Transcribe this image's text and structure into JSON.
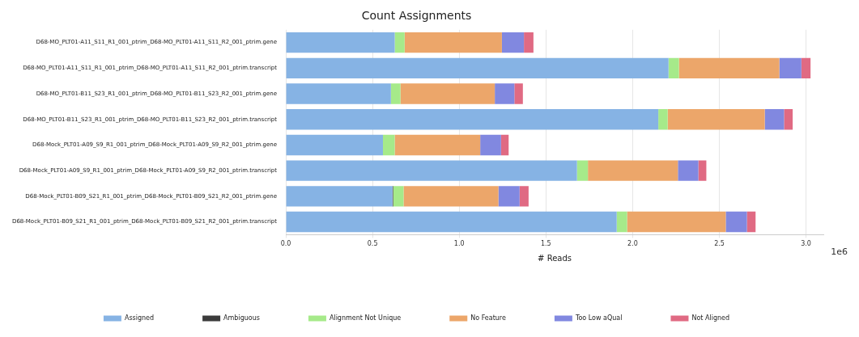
{
  "chart_data": {
    "type": "bar",
    "orientation": "horizontal",
    "stacked": true,
    "title": "Count Assignments",
    "xlabel": "# Reads",
    "annotations": [
      "1e6"
    ],
    "categories": [
      "D68-MO_PLT01-A11_S11_R1_001_ptrim_D68-MO_PLT01-A11_S11_R2_001_ptrim.gene",
      "D68-MO_PLT01-A11_S11_R1_001_ptrim_D68-MO_PLT01-A11_S11_R2_001_ptrim.transcript",
      "D68-MO_PLT01-B11_S23_R1_001_ptrim_D68-MO_PLT01-B11_S23_R2_001_ptrim.gene",
      "D68-MO_PLT01-B11_S23_R1_001_ptrim_D68-MO_PLT01-B11_S23_R2_001_ptrim.transcript",
      "D68-Mock_PLT01-A09_S9_R1_001_ptrim_D68-Mock_PLT01-A09_S9_R2_001_ptrim.gene",
      "D68-Mock_PLT01-A09_S9_R1_001_ptrim_D68-Mock_PLT01-A09_S9_R2_001_ptrim.transcript",
      "D68-Mock_PLT01-B09_S21_R1_001_ptrim_D68-Mock_PLT01-B09_S21_R2_001_ptrim.gene",
      "D68-Mock_PLT01-B09_S21_R1_001_ptrim_D68-Mock_PLT01-B09_S21_R2_001_ptrim.transcript"
    ],
    "series": [
      {
        "name": "Assigned",
        "color": "#86b3e4",
        "values": [
          0.628,
          2.207,
          0.606,
          2.148,
          0.56,
          1.679,
          0.615,
          1.908
        ]
      },
      {
        "name": "Ambiguous",
        "color": "#3b3b3b",
        "values": [
          0,
          0,
          0,
          0,
          0,
          0,
          0.004,
          0
        ]
      },
      {
        "name": "Alignment Not Unique",
        "color": "#a6ea8a",
        "values": [
          0.057,
          0.06,
          0.055,
          0.054,
          0.068,
          0.063,
          0.06,
          0.06
        ]
      },
      {
        "name": "No Feature",
        "color": "#eca66a",
        "values": [
          0.561,
          0.579,
          0.544,
          0.56,
          0.493,
          0.519,
          0.547,
          0.569
        ]
      },
      {
        "name": "Too Low aQual",
        "color": "#8188e0",
        "values": [
          0.127,
          0.127,
          0.113,
          0.111,
          0.12,
          0.118,
          0.122,
          0.122
        ]
      },
      {
        "name": "Not Aligned",
        "color": "#e06a83",
        "values": [
          0.055,
          0.053,
          0.049,
          0.05,
          0.044,
          0.046,
          0.052,
          0.05
        ]
      }
    ],
    "xlim": [
      0,
      3.1
    ],
    "xticks": [
      {
        "value": 0,
        "label": "0.0"
      },
      0.5,
      {
        "value": 1,
        "label": "1.0"
      },
      1.5,
      {
        "value": 2,
        "label": "2.0"
      },
      2.5,
      {
        "value": 3,
        "label": "3.0"
      }
    ],
    "grid": "x",
    "legend": "bottom"
  }
}
